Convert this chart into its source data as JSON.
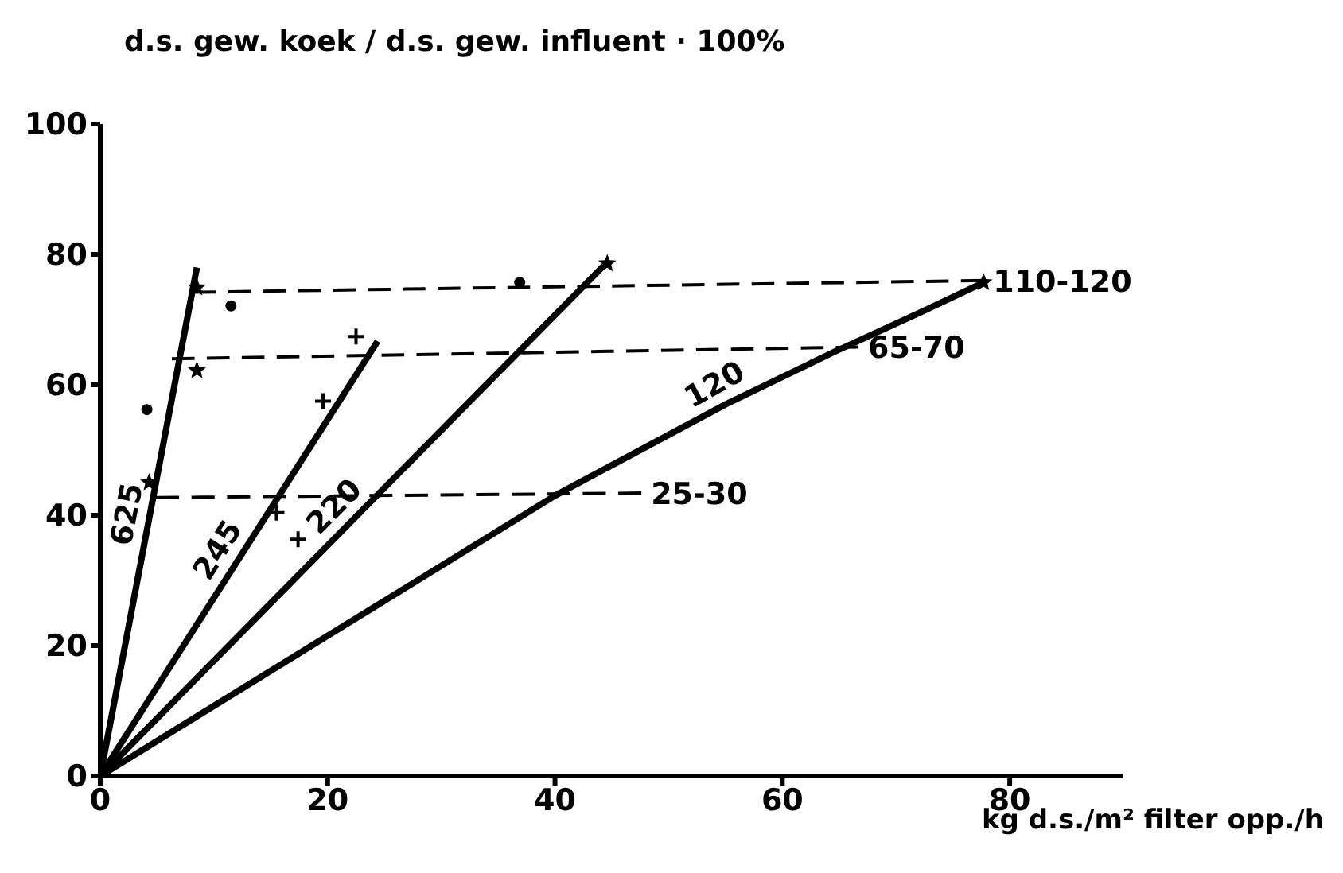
{
  "chart_data": {
    "type": "line",
    "ylabel": "d.s. gew. koek / d.s. gew. influent · 100%",
    "xlabel": "kg d.s./m² filter opp./h",
    "xlim": [
      0,
      90
    ],
    "ylim": [
      0,
      100
    ],
    "xticks": [
      0,
      20,
      40,
      60,
      80
    ],
    "yticks": [
      0,
      20,
      40,
      60,
      80,
      100
    ],
    "series": [
      {
        "name": "625",
        "color": "#000000",
        "line_style": "solid",
        "x": [
          0,
          4.3,
          8.5
        ],
        "values": [
          0,
          39.5,
          78
        ]
      },
      {
        "name": "245",
        "color": "#000000",
        "line_style": "solid",
        "x": [
          0,
          12,
          24.4
        ],
        "values": [
          0,
          32.8,
          66.7
        ]
      },
      {
        "name": "220",
        "color": "#000000",
        "line_style": "solid",
        "x": [
          0,
          22,
          44.3
        ],
        "values": [
          0,
          38.9,
          78.3
        ]
      },
      {
        "name": "120",
        "color": "#000000",
        "line_style": "solid",
        "x": [
          0,
          20,
          40,
          55,
          64.5,
          72,
          77.7
        ],
        "values": [
          0,
          21.5,
          43,
          57,
          65,
          71,
          75.7
        ]
      },
      {
        "name": "110-120",
        "color": "#000000",
        "line_style": "dashed",
        "x": [
          8.2,
          77.7
        ],
        "values": [
          74.2,
          76
        ]
      },
      {
        "name": "65-70",
        "color": "#000000",
        "line_style": "dashed",
        "x": [
          6.3,
          66.7
        ],
        "values": [
          64,
          65.8
        ]
      },
      {
        "name": "25-30",
        "color": "#000000",
        "line_style": "dashed",
        "x": [
          4.9,
          47.6
        ],
        "values": [
          42.7,
          43.4
        ]
      },
      {
        "type": "scatter",
        "color": "#000000",
        "marker": "circle",
        "x": [
          4.1,
          11.5,
          36.9
        ],
        "values": [
          56.2,
          72.1,
          75.7
        ]
      },
      {
        "type": "scatter",
        "color": "#000000",
        "marker": "star",
        "x": [
          8.5,
          8.5,
          4.3,
          44.6,
          77.7
        ],
        "values": [
          74.9,
          62.2,
          45,
          78.6,
          75.7
        ]
      },
      {
        "type": "scatter",
        "color": "#000000",
        "marker": "cross",
        "x": [
          22.5,
          19.6,
          15.5,
          17.4
        ],
        "values": [
          67.4,
          57.5,
          40.4,
          36.3
        ]
      }
    ]
  }
}
